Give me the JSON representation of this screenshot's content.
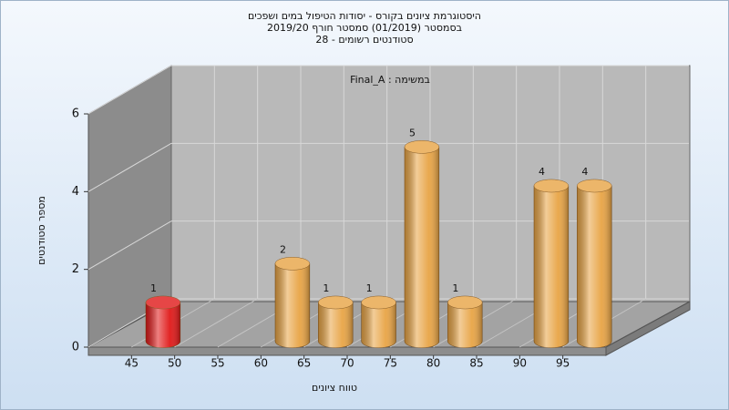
{
  "chart_data": {
    "type": "histogram3d",
    "title_lines": [
      "היסטוגרמת ציונים בקורס - יסודות הטיפול במים ושפכים",
      "בסמסטר (01/2019) סמסטר חורף 2019/20",
      "סטודנטים רשומים - 28"
    ],
    "annotation": "במשימה : Final_A",
    "x_label": "טווח ציונים",
    "y_label": "מספר סטודנטים",
    "bins": [
      45,
      50,
      55,
      60,
      65,
      70,
      75,
      80,
      85,
      90,
      95,
      100
    ],
    "values": [
      1,
      0,
      0,
      2,
      1,
      1,
      5,
      1,
      0,
      4,
      4
    ],
    "colors": [
      "#e01818",
      "#e8a445",
      "#e8a445",
      "#e8a445",
      "#e8a445",
      "#e8a445",
      "#e8a445",
      "#e8a445",
      "#e8a445",
      "#e8a445",
      "#e8a445"
    ],
    "xlim": [
      40,
      100
    ],
    "xticks": [
      45,
      50,
      55,
      60,
      65,
      70,
      75,
      80,
      85,
      90,
      95
    ],
    "ylim": [
      0,
      6
    ],
    "yticks": [
      0,
      2,
      4,
      6
    ],
    "grid": true
  }
}
